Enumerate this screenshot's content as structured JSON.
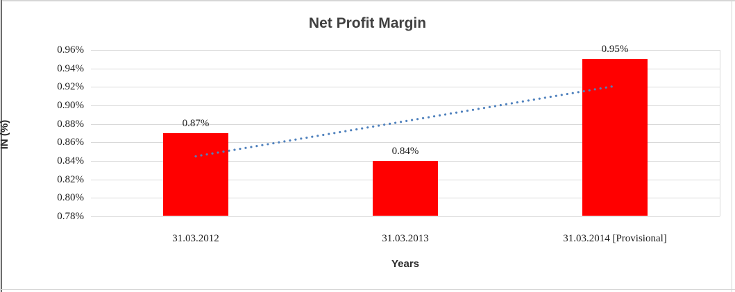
{
  "chart_data": {
    "type": "bar",
    "title": "Net Profit Margin",
    "xlabel": "Years",
    "ylabel": "IN (%)",
    "categories": [
      "31.03.2012",
      "31.03.2013",
      "31.03.2014 [Provisional]"
    ],
    "values": [
      0.87,
      0.84,
      0.95
    ],
    "data_labels": [
      "0.87%",
      "0.84%",
      "0.95%"
    ],
    "unit": "%",
    "ylim": [
      0.78,
      0.96
    ],
    "ytick_step": 0.02,
    "ytick_labels": [
      "0.78%",
      "0.80%",
      "0.82%",
      "0.84%",
      "0.86%",
      "0.88%",
      "0.90%",
      "0.92%",
      "0.94%",
      "0.96%"
    ],
    "grid": true,
    "legend": "none",
    "bar_color": "#ff0000",
    "gridline_color": "#d9d9d9",
    "trendline": {
      "type": "linear",
      "style": "dotted",
      "color": "#4f81bd",
      "start_value": 0.845,
      "end_value": 0.921
    }
  }
}
